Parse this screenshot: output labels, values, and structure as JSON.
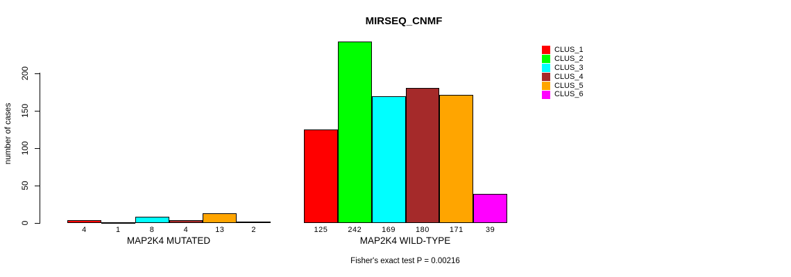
{
  "title": "MIRSEQ_CNMF",
  "chart_data": {
    "type": "bar",
    "title": "MIRSEQ_CNMF",
    "ylabel": "number of cases",
    "groups": [
      {
        "label": "MAP2K4 MUTATED",
        "values": [
          4,
          1,
          8,
          4,
          13,
          2
        ]
      },
      {
        "label": "MAP2K4 WILD-TYPE",
        "values": [
          125,
          242,
          169,
          180,
          171,
          39
        ]
      }
    ],
    "series": [
      {
        "name": "CLUS_1",
        "color": "#FF0000"
      },
      {
        "name": "CLUS_2",
        "color": "#00FF00"
      },
      {
        "name": "CLUS_3",
        "color": "#00FFFF"
      },
      {
        "name": "CLUS_4",
        "color": "#A52A2A"
      },
      {
        "name": "CLUS_5",
        "color": "#FFA500"
      },
      {
        "name": "CLUS_6",
        "color": "#FF00FF"
      }
    ],
    "y_ticks": [
      0,
      50,
      100,
      150,
      200
    ],
    "ylim": [
      0,
      242
    ],
    "grid": false,
    "bar_value_labels_shown": true,
    "legend_position": "top-right",
    "annotation": "Fisher's exact test P = 0.00216"
  }
}
